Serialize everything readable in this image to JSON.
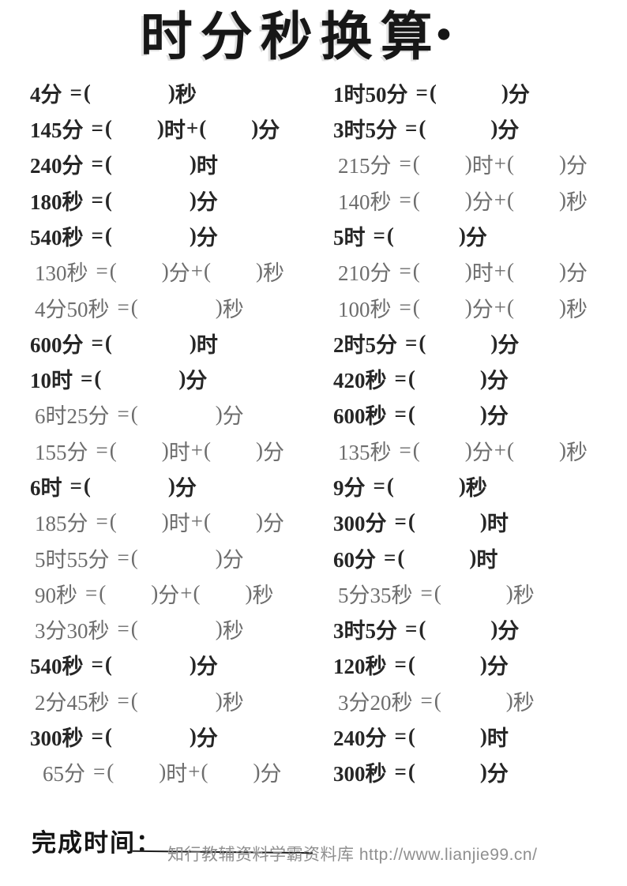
{
  "title": {
    "text": "时分秒换算",
    "bullet": "●"
  },
  "exercises": {
    "left": [
      {
        "lhs": "4分",
        "parts": [
          "秒"
        ],
        "light": false
      },
      {
        "lhs": "145分",
        "parts": [
          "时",
          "分"
        ],
        "light": false
      },
      {
        "lhs": "240分",
        "parts": [
          "时"
        ],
        "light": false
      },
      {
        "lhs": "180秒",
        "parts": [
          "分"
        ],
        "light": false
      },
      {
        "lhs": "540秒",
        "parts": [
          "分"
        ],
        "light": false
      },
      {
        "lhs": "130秒",
        "parts": [
          "分",
          "秒"
        ],
        "light": true
      },
      {
        "lhs": "4分50秒",
        "parts": [
          "秒"
        ],
        "light": true
      },
      {
        "lhs": "600分",
        "parts": [
          "时"
        ],
        "light": false
      },
      {
        "lhs": "10时",
        "parts": [
          "分"
        ],
        "light": false
      },
      {
        "lhs": "6时25分",
        "parts": [
          "分"
        ],
        "light": true
      },
      {
        "lhs": "155分",
        "parts": [
          "时",
          "分"
        ],
        "light": true
      },
      {
        "lhs": "6时",
        "parts": [
          "分"
        ],
        "light": false
      },
      {
        "lhs": "185分",
        "parts": [
          "时",
          "分"
        ],
        "light": true
      },
      {
        "lhs": "5时55分",
        "parts": [
          "分"
        ],
        "light": true
      },
      {
        "lhs": "90秒",
        "parts": [
          "分",
          "秒"
        ],
        "light": true
      },
      {
        "lhs": "3分30秒",
        "parts": [
          "秒"
        ],
        "light": true
      },
      {
        "lhs": "540秒",
        "parts": [
          "分"
        ],
        "light": false
      },
      {
        "lhs": "2分45秒",
        "parts": [
          "秒"
        ],
        "light": true
      },
      {
        "lhs": "300秒",
        "parts": [
          "分"
        ],
        "light": false
      },
      {
        "lhs": "65分",
        "parts": [
          "时",
          "分"
        ],
        "light": true
      }
    ],
    "right": [
      {
        "lhs": "1时50分",
        "parts": [
          "分"
        ],
        "light": false
      },
      {
        "lhs": "3时5分",
        "parts": [
          "分"
        ],
        "light": false
      },
      {
        "lhs": "215分",
        "parts": [
          "时",
          "分"
        ],
        "light": true
      },
      {
        "lhs": "140秒",
        "parts": [
          "分",
          "秒"
        ],
        "light": true
      },
      {
        "lhs": "5时",
        "parts": [
          "分"
        ],
        "light": false
      },
      {
        "lhs": "210分",
        "parts": [
          "时",
          "分"
        ],
        "light": true
      },
      {
        "lhs": "100秒",
        "parts": [
          "分",
          "秒"
        ],
        "light": true
      },
      {
        "lhs": "2时5分",
        "parts": [
          "分"
        ],
        "light": false
      },
      {
        "lhs": "420秒",
        "parts": [
          "分"
        ],
        "light": false
      },
      {
        "lhs": "600秒",
        "parts": [
          "分"
        ],
        "light": false
      },
      {
        "lhs": "135秒",
        "parts": [
          "分",
          "秒"
        ],
        "light": true
      },
      {
        "lhs": "9分",
        "parts": [
          "秒"
        ],
        "light": false
      },
      {
        "lhs": "300分",
        "parts": [
          "时"
        ],
        "light": false
      },
      {
        "lhs": "60分",
        "parts": [
          "时"
        ],
        "light": false
      },
      {
        "lhs": "5分35秒",
        "parts": [
          "秒"
        ],
        "light": true
      },
      {
        "lhs": "3时5分",
        "parts": [
          "分"
        ],
        "light": false
      },
      {
        "lhs": "120秒",
        "parts": [
          "分"
        ],
        "light": false
      },
      {
        "lhs": "3分20秒",
        "parts": [
          "秒"
        ],
        "light": true
      },
      {
        "lhs": "240分",
        "parts": [
          "时"
        ],
        "light": false
      },
      {
        "lhs": "300秒",
        "parts": [
          "分"
        ],
        "light": false
      }
    ]
  },
  "footer": {
    "completion_label": "完成时间：",
    "watermark": "知行教辅资料学霸资料库 http://www.lianjie99.cn/"
  },
  "colors": {
    "text_dark": "#262626",
    "text_light": "#6d6d6d",
    "watermark_gray": "#8f8f8f",
    "background": "#ffffff"
  }
}
